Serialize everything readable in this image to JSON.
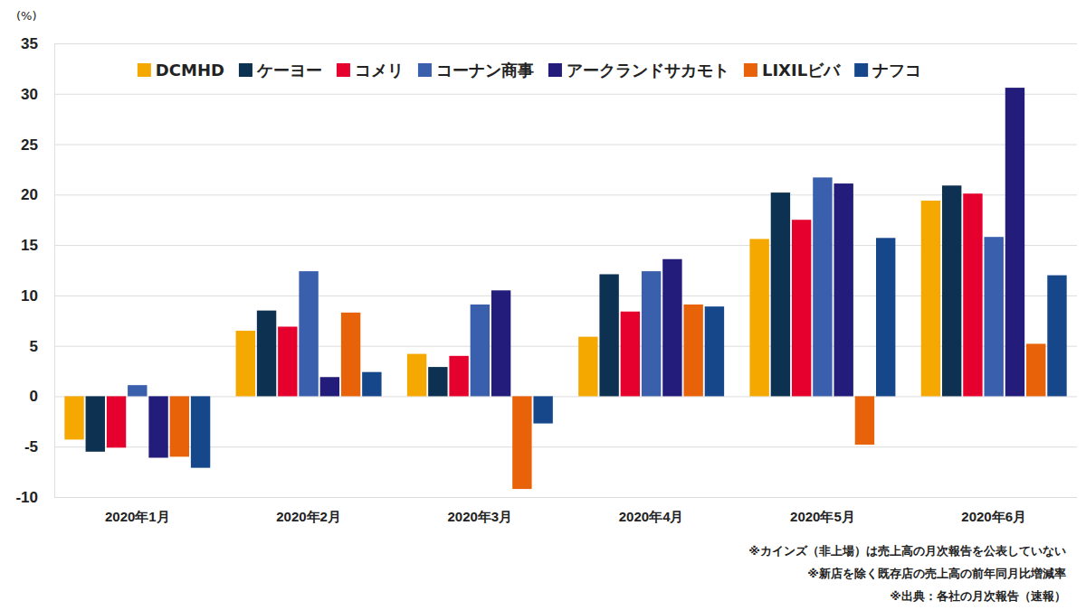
{
  "chart_data": {
    "type": "bar",
    "ylabel": "(%)",
    "categories": [
      "2020年1月",
      "2020年2月",
      "2020年3月",
      "2020年4月",
      "2020年5月",
      "2020年6月"
    ],
    "series": [
      {
        "name": "DCMHD",
        "color": "#f5a800",
        "values": [
          -4.3,
          6.5,
          4.2,
          5.9,
          15.6,
          19.4
        ]
      },
      {
        "name": "ケーヨー",
        "color": "#0d3150",
        "values": [
          -5.5,
          8.5,
          2.9,
          12.1,
          20.2,
          20.9
        ]
      },
      {
        "name": "コメリ",
        "color": "#e6002d",
        "values": [
          -5.1,
          6.9,
          4.0,
          8.4,
          17.5,
          20.1
        ]
      },
      {
        "name": "コーナン商事",
        "color": "#3a5fad",
        "values": [
          1.1,
          12.4,
          9.1,
          12.4,
          21.7,
          15.8
        ]
      },
      {
        "name": "アークランドサカモト",
        "color": "#231c7a",
        "values": [
          -6.1,
          1.9,
          10.5,
          13.6,
          21.1,
          30.6
        ]
      },
      {
        "name": "LIXILビバ",
        "color": "#e8620a",
        "values": [
          -6.0,
          8.3,
          -9.2,
          9.1,
          -4.8,
          5.2
        ]
      },
      {
        "name": "ナフコ",
        "color": "#15478a",
        "values": [
          -7.1,
          2.4,
          -2.7,
          8.9,
          15.7,
          12.0
        ]
      }
    ],
    "ylim": [
      -10,
      35
    ],
    "yticks": [
      -10,
      -5,
      0,
      5,
      10,
      15,
      20,
      25,
      30,
      35
    ],
    "grid": true,
    "legend": "top",
    "annotations": [
      "※カインズ（非上場）は売上高の月次報告を公表していない",
      "※新店を除く既存店の売上高の前年同月比増減率",
      "※出典：各社の月次報告（速報）"
    ]
  }
}
